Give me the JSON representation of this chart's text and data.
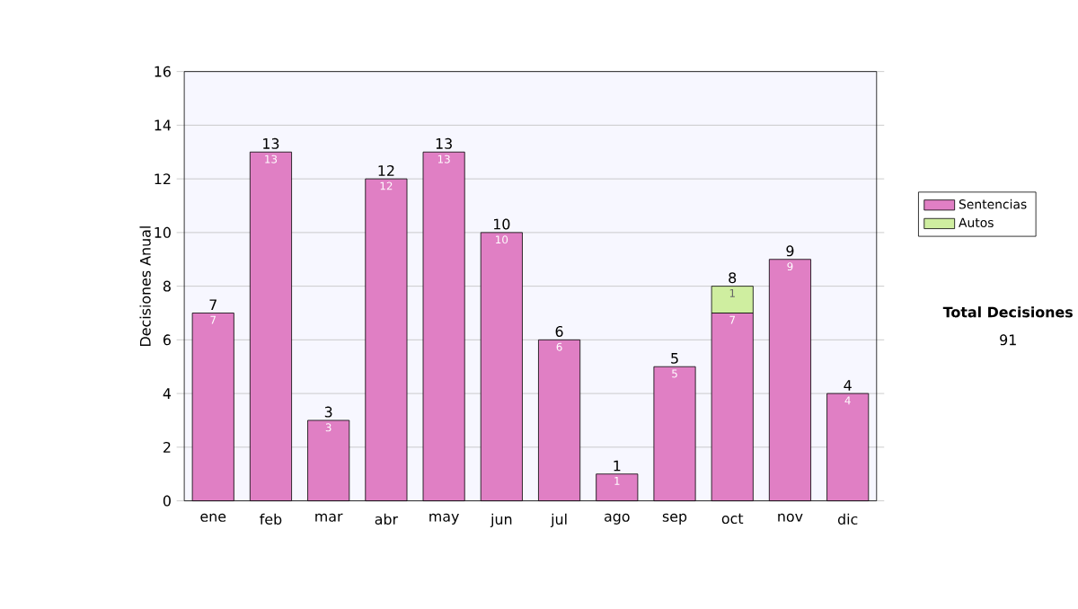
{
  "chart_data": {
    "type": "bar",
    "stacked": true,
    "ylabel": "Decisiones Anual",
    "categories": [
      "ene",
      "feb",
      "mar",
      "abr",
      "may",
      "jun",
      "jul",
      "ago",
      "sep",
      "oct",
      "nov",
      "dic"
    ],
    "series": [
      {
        "name": "Sentencias",
        "color": "#e07fc4",
        "values": [
          7,
          13,
          3,
          12,
          13,
          10,
          6,
          1,
          5,
          7,
          9,
          4
        ]
      },
      {
        "name": "Autos",
        "color": "#cfeea0",
        "values": [
          null,
          null,
          null,
          null,
          null,
          null,
          null,
          null,
          null,
          1,
          null,
          null
        ]
      }
    ],
    "totals": [
      "7",
      "13",
      "3",
      "12",
      "13",
      "10",
      "6",
      "1",
      "5",
      "8",
      "9",
      "4"
    ],
    "data_labels": true,
    "ylim": [
      0,
      16
    ],
    "yticks": [
      0,
      2,
      4,
      6,
      8,
      10,
      12,
      14,
      16
    ],
    "grid": "y",
    "legend": "right",
    "annotations": [
      "Total Decisiones",
      "91"
    ]
  }
}
